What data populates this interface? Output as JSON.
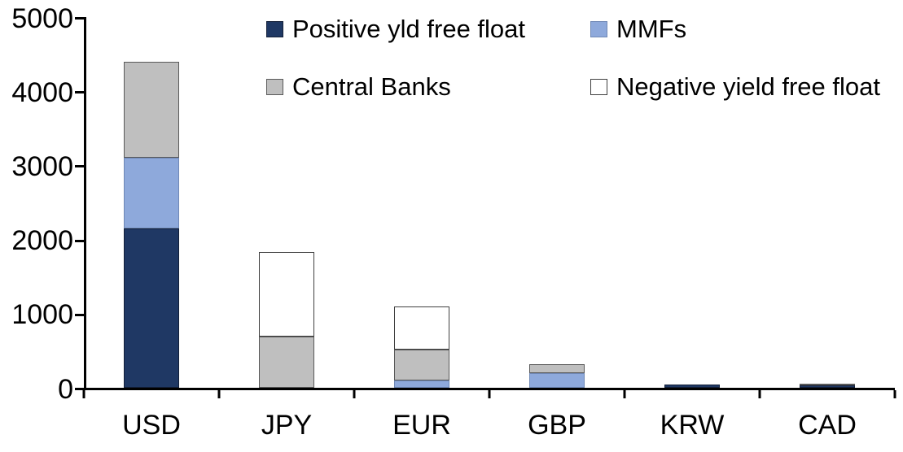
{
  "chart_data": {
    "type": "bar",
    "stacked": true,
    "title": "",
    "xlabel": "",
    "ylabel": "",
    "categories": [
      "USD",
      "JPY",
      "EUR",
      "GBP",
      "KRW",
      "CAD"
    ],
    "series": [
      {
        "name": "Positive yld free float",
        "color": "#1F3864",
        "border_color": "#131F38",
        "values": [
          2150,
          0,
          0,
          0,
          40,
          30
        ]
      },
      {
        "name": "MMFs",
        "color": "#8EA9DB",
        "border_color": "#6F88B5",
        "values": [
          950,
          0,
          100,
          200,
          0,
          0
        ]
      },
      {
        "name": "Central Banks",
        "color": "#BFBFBF",
        "border_color": "#595959",
        "values": [
          1300,
          690,
          420,
          120,
          0,
          30
        ]
      },
      {
        "name": "Negative yield free float",
        "color": "#FFFFFF",
        "border_color": "#404040",
        "values": [
          0,
          1140,
          580,
          0,
          0,
          0
        ]
      }
    ],
    "totals": [
      4400,
      1830,
      1100,
      320,
      40,
      60
    ],
    "ylim": [
      0,
      5000
    ],
    "yticks": [
      0,
      1000,
      2000,
      3000,
      4000,
      5000
    ],
    "grid": false,
    "legend_position": "top",
    "legend_layout": "2x2"
  }
}
